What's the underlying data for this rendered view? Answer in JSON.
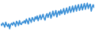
{
  "chart_data": {
    "type": "line",
    "x": [
      0,
      1,
      2,
      3,
      4,
      5,
      6,
      7,
      8,
      9,
      10,
      11,
      12,
      13,
      14,
      15,
      16,
      17,
      18,
      19,
      20,
      21,
      22,
      23,
      24,
      25,
      26,
      27,
      28,
      29,
      30,
      31,
      32,
      33,
      34,
      35,
      36,
      37,
      38,
      39,
      40,
      41,
      42,
      43,
      44,
      45,
      46,
      47,
      48,
      49,
      50,
      51,
      52,
      53,
      54,
      55,
      56,
      57,
      58,
      59,
      60,
      61,
      62,
      63,
      64,
      65,
      66,
      67,
      68,
      69,
      70,
      71,
      72,
      73,
      74,
      75,
      76,
      77,
      78,
      79,
      80,
      81,
      82,
      83,
      84,
      85,
      86,
      87,
      88,
      89,
      90,
      91,
      92,
      93,
      94,
      95
    ],
    "series": [
      {
        "color": "#3a8fd6",
        "values": [
          30,
          25,
          33,
          28,
          20,
          35,
          27,
          22,
          30,
          15,
          28,
          32,
          26,
          35,
          30,
          22,
          38,
          33,
          25,
          40,
          30,
          28,
          36,
          34,
          40,
          32,
          45,
          38,
          30,
          48,
          42,
          35,
          50,
          44,
          38,
          52,
          45,
          55,
          40,
          50,
          58,
          44,
          52,
          60,
          48,
          42,
          56,
          62,
          50,
          60,
          66,
          48,
          58,
          70,
          55,
          62,
          72,
          52,
          64,
          70,
          58,
          74,
          62,
          68,
          78,
          60,
          70,
          80,
          64,
          72,
          84,
          66,
          74,
          86,
          68,
          78,
          88,
          70,
          82,
          90,
          72,
          80,
          92,
          74,
          84,
          94,
          76,
          86,
          95,
          78,
          88,
          92,
          70,
          84,
          90,
          80
        ]
      }
    ],
    "xlim": [
      0,
      95
    ],
    "ylim": [
      0,
      100
    ],
    "grid": false,
    "tick_labels": false
  }
}
